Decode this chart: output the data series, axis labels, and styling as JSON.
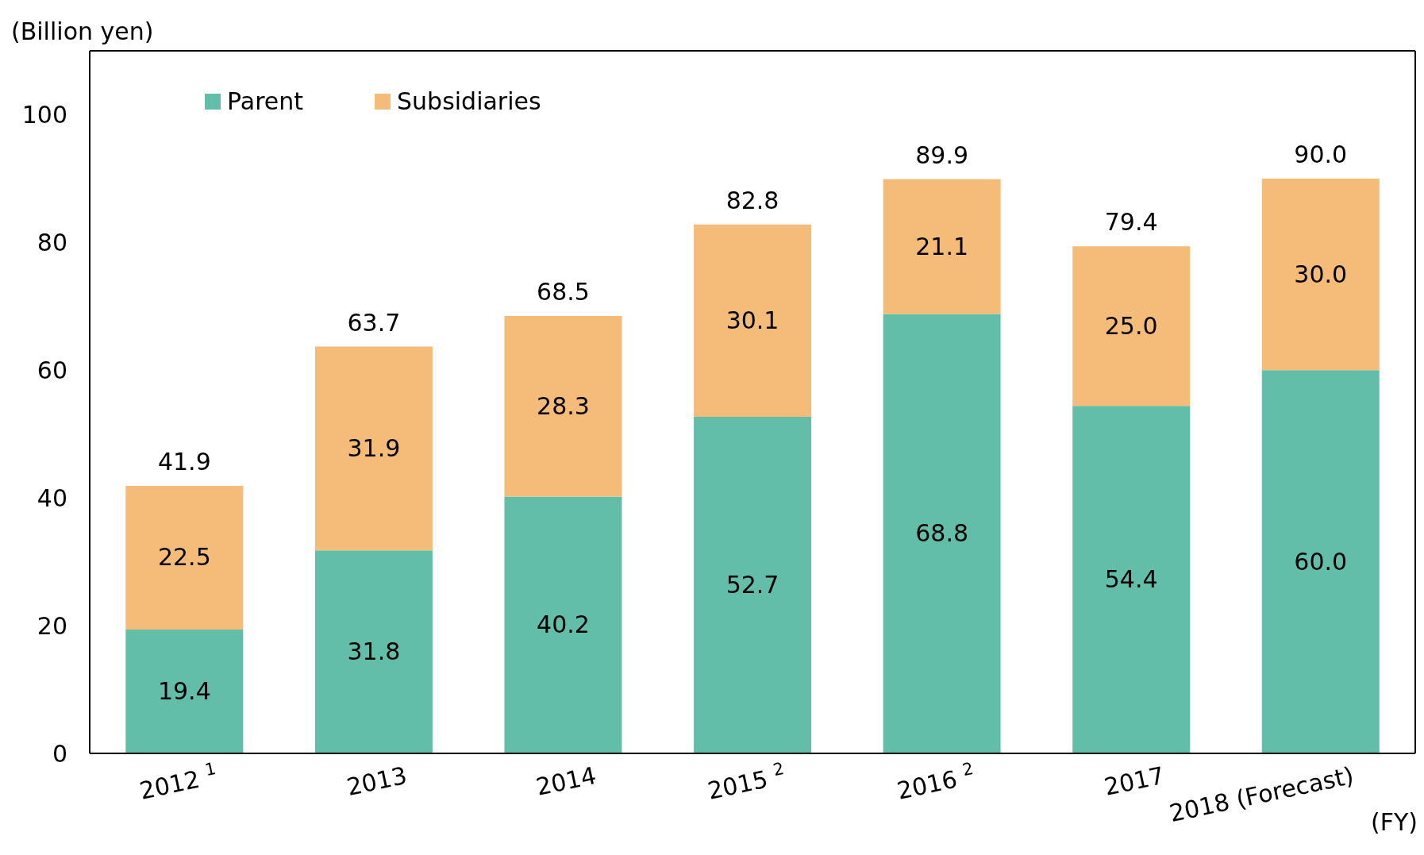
{
  "chart_data": {
    "type": "bar",
    "stacked": true,
    "ylabel": "(Billion yen)",
    "xlabel": "(FY)",
    "categories": [
      "2012 $^{1}$",
      "2013",
      "2014",
      "2015 $^{2}$",
      "2016 $^{2}$",
      "2017",
      "2018 (Forecast)"
    ],
    "series": [
      {
        "name": "Parent",
        "color": "#63bea9",
        "values": [
          19.4,
          31.8,
          40.2,
          52.7,
          68.8,
          54.4,
          60.0
        ],
        "value_labels": [
          "19.4",
          "31.8",
          "40.2",
          "52.7",
          "68.8",
          "54.4",
          "60.0"
        ]
      },
      {
        "name": "Subsidiaries",
        "color": "#f5bb78",
        "values": [
          22.5,
          31.9,
          28.3,
          30.1,
          21.1,
          25.0,
          30.0
        ],
        "value_labels": [
          "22.5",
          "31.9",
          "28.3",
          "30.1",
          "21.1",
          "25.0",
          "30.0"
        ]
      }
    ],
    "totals": [
      "41.9",
      "63.7",
      "68.5",
      "82.8",
      "89.9",
      "79.4",
      "90.0"
    ],
    "ylim": [
      0,
      110
    ],
    "yticks": [
      0,
      20,
      40,
      60,
      80,
      100
    ],
    "grid": false,
    "legend": "top left"
  }
}
